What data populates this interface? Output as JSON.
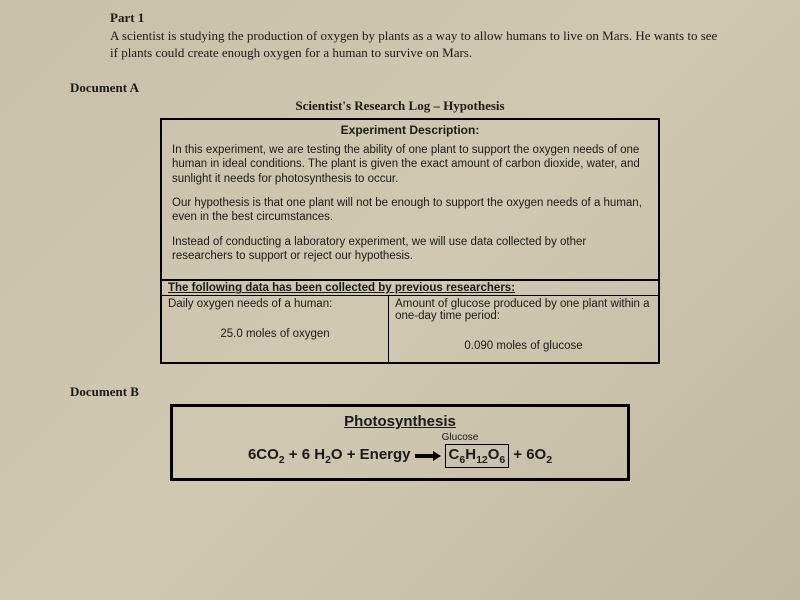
{
  "part1": {
    "heading": "Part 1",
    "intro": "A scientist is studying the production of oxygen by plants as a way to allow humans to live on Mars. He wants to see if plants could create enough oxygen for a human to survive on Mars."
  },
  "docA": {
    "label": "Document A",
    "title": "Scientist's Research Log – Hypothesis",
    "expHeader": "Experiment Description:",
    "para1": "In this experiment, we are testing the ability of one plant to support the oxygen needs of one human in ideal conditions. The plant is given the exact amount of carbon dioxide, water, and sunlight it needs for photosynthesis to occur.",
    "para2": "Our hypothesis is that one plant will not be enough to support the oxygen needs of a human, even in the best circumstances.",
    "para3": "Instead of conducting a laboratory experiment, we will use data collected by other researchers to support or reject our hypothesis.",
    "dataHeader": "The following data has been collected by previous researchers:",
    "leftHeader": "Daily oxygen needs of a human:",
    "rightHeader": "Amount of glucose produced by one plant within a one-day time period:",
    "leftValue": "25.0 moles of oxygen",
    "rightValue": "0.090 moles of glucose"
  },
  "docB": {
    "label": "Document B",
    "title": "Photosynthesis",
    "glucoseLabel": "Glucose",
    "equation": {
      "reactants": "6CO₂ + 6 H₂O + Energy",
      "glucose": "C₆H₁₂O₆",
      "products_tail": "+ 6O₂"
    }
  },
  "style": {
    "border_color": "#000000",
    "background_tone": "#c8c0a8",
    "font_serif": "Times New Roman",
    "font_sans": "Verdana"
  }
}
